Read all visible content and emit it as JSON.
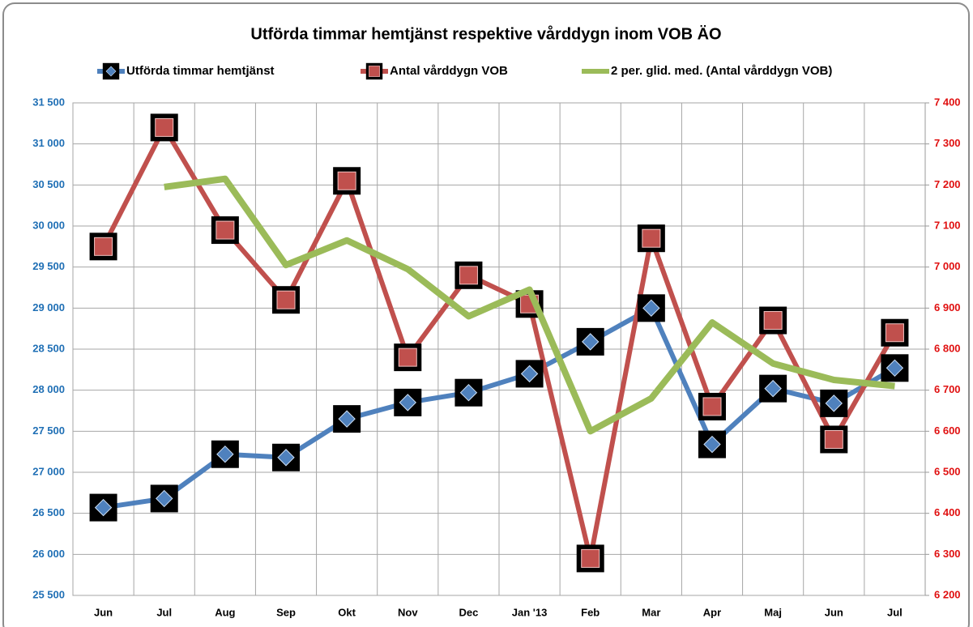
{
  "chart_data": {
    "type": "line",
    "title": "Utförda timmar hemtjänst respektive vårddygn inom VOB ÄO",
    "categories": [
      "Jun",
      "Jul",
      "Aug",
      "Sep",
      "Okt",
      "Nov",
      "Dec",
      "Jan '13",
      "Feb",
      "Mar",
      "Apr",
      "Maj",
      "Jun",
      "Jul"
    ],
    "series": [
      {
        "name": "Utförda timmar hemtjänst",
        "color": "#4f81bd",
        "marker": "diamond",
        "axis": "y",
        "values": [
          26570,
          26680,
          27220,
          27180,
          27650,
          27850,
          27970,
          28200,
          28590,
          29000,
          27340,
          28020,
          27840,
          28270
        ]
      },
      {
        "name": "Antal vårddygn VOB",
        "color": "#c0504d",
        "marker": "square",
        "axis": "y2",
        "values": [
          7050,
          7340,
          7090,
          6920,
          7210,
          6780,
          6980,
          6910,
          6290,
          7070,
          6660,
          6870,
          6580,
          6840
        ]
      },
      {
        "name": "2 per. glid. med. (Antal vårddygn VOB)",
        "color": "#9bbb59",
        "marker": "none",
        "axis": "y2",
        "values": [
          null,
          7195,
          7215,
          7005,
          7065,
          6995,
          6880,
          6945,
          6600,
          6680,
          6865,
          6765,
          6725,
          6710
        ]
      }
    ],
    "ylim": [
      25500,
      31500
    ],
    "yticks": [
      {
        "value": 25500,
        "label": "25 500"
      },
      {
        "value": 26000,
        "label": "26 000"
      },
      {
        "value": 26500,
        "label": "26 500"
      },
      {
        "value": 27000,
        "label": "27 000"
      },
      {
        "value": 27500,
        "label": "27 500"
      },
      {
        "value": 28000,
        "label": "28 000"
      },
      {
        "value": 28500,
        "label": "28 500"
      },
      {
        "value": 29000,
        "label": "29 000"
      },
      {
        "value": 29500,
        "label": "29 500"
      },
      {
        "value": 30000,
        "label": "30 000"
      },
      {
        "value": 30500,
        "label": "30 500"
      },
      {
        "value": 31000,
        "label": "31 000"
      },
      {
        "value": 31500,
        "label": "31 500"
      }
    ],
    "y2lim": [
      6200,
      7400
    ],
    "y2ticks": [
      {
        "value": 6200,
        "label": "6 200"
      },
      {
        "value": 6300,
        "label": "6 300"
      },
      {
        "value": 6400,
        "label": "6 400"
      },
      {
        "value": 6500,
        "label": "6 500"
      },
      {
        "value": 6600,
        "label": "6 600"
      },
      {
        "value": 6700,
        "label": "6 700"
      },
      {
        "value": 6800,
        "label": "6 800"
      },
      {
        "value": 6900,
        "label": "6 900"
      },
      {
        "value": 7000,
        "label": "7 000"
      },
      {
        "value": 7100,
        "label": "7 100"
      },
      {
        "value": 7200,
        "label": "7 200"
      },
      {
        "value": 7300,
        "label": "7 300"
      },
      {
        "value": 7400,
        "label": "7 400"
      }
    ],
    "ytick_color": "#1f6fb5",
    "y2tick_color": "#e01010",
    "grid": true,
    "legend": "top"
  }
}
